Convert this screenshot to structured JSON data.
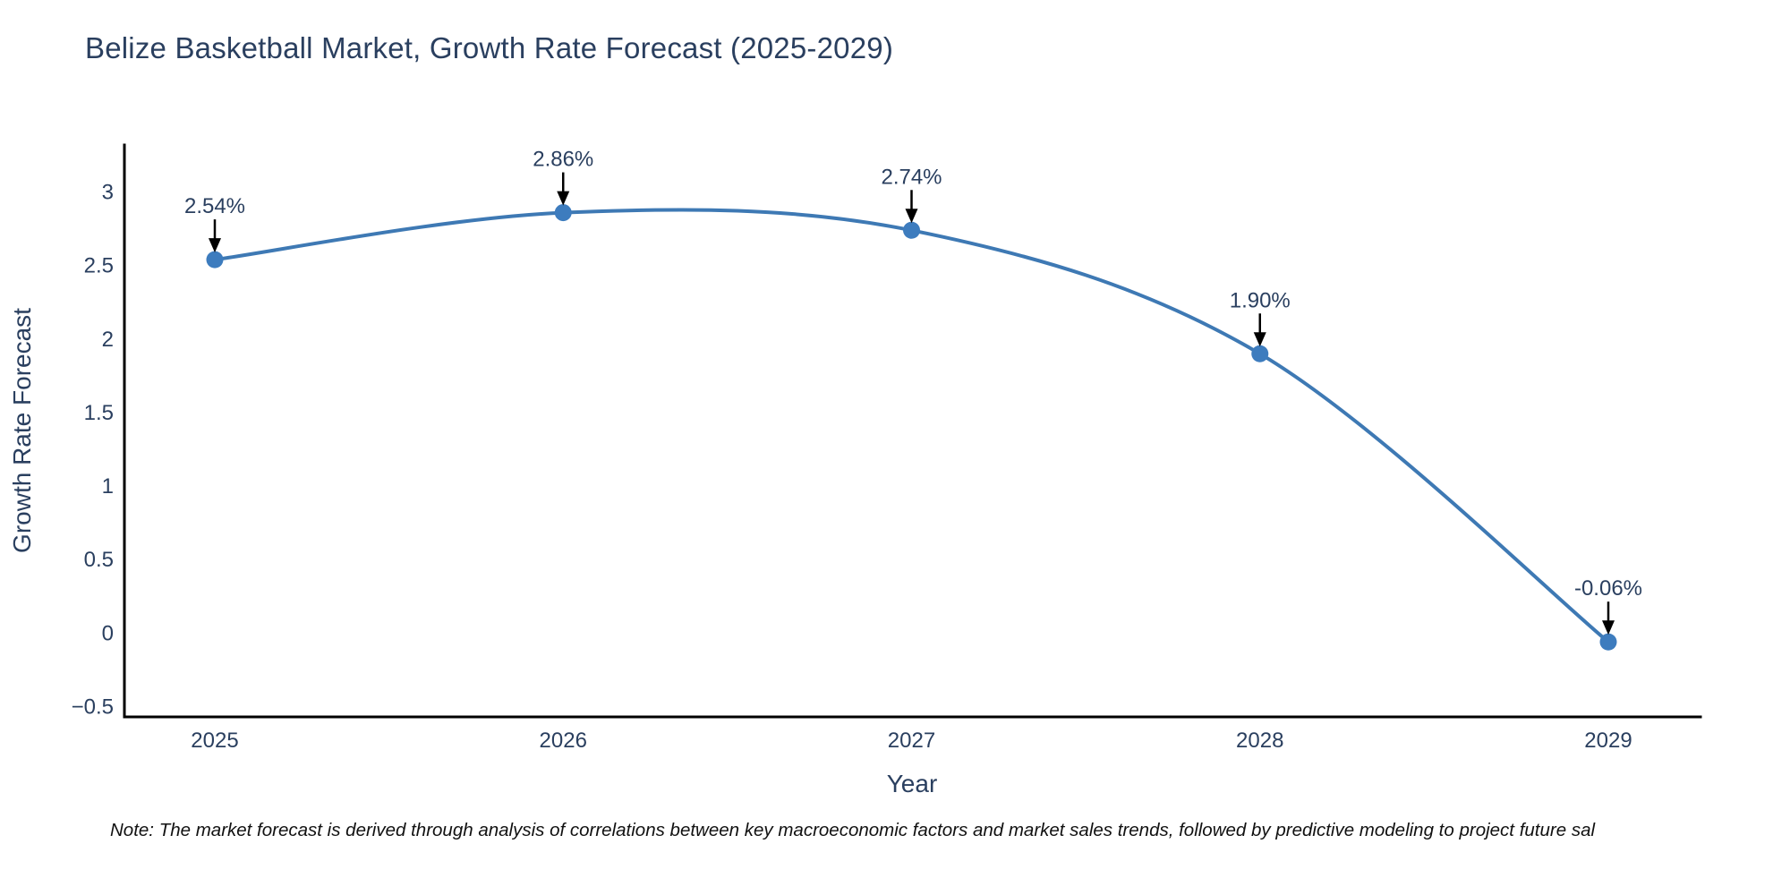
{
  "chart_data": {
    "type": "line",
    "title": "Belize Basketball Market, Growth Rate Forecast (2025-2029)",
    "xlabel": "Year",
    "ylabel": "Growth Rate Forecast",
    "x": [
      2025,
      2026,
      2027,
      2028,
      2029
    ],
    "values": [
      2.54,
      2.86,
      2.74,
      1.9,
      -0.06
    ],
    "point_labels": [
      "2.54%",
      "2.86%",
      "2.74%",
      "1.90%",
      "-0.06%"
    ],
    "xtick_labels": [
      "2025",
      "2026",
      "2027",
      "2028",
      "2029"
    ],
    "ytick_values": [
      3,
      2.5,
      2,
      1.5,
      1,
      0.5,
      0,
      -0.5
    ],
    "ytick_labels": [
      "3",
      "2.5",
      "2",
      "1.5",
      "1",
      "0.5",
      "0",
      "−0.5"
    ],
    "ylim": [
      -0.57,
      3.32
    ],
    "line_shape": "spline",
    "grid": false,
    "legend": "none",
    "note": "Note: The market forecast is derived through analysis of correlations between key macroeconomic factors and market sales trends, followed by predictive modeling to project future sal",
    "colors": {
      "line": "#3e79b4",
      "marker": "#3d7cbe",
      "axis_line": "#000000",
      "text": "#2a3f5f",
      "annotation_arrow": "#000000",
      "note_text": "#111111",
      "background": "#ffffff"
    }
  }
}
